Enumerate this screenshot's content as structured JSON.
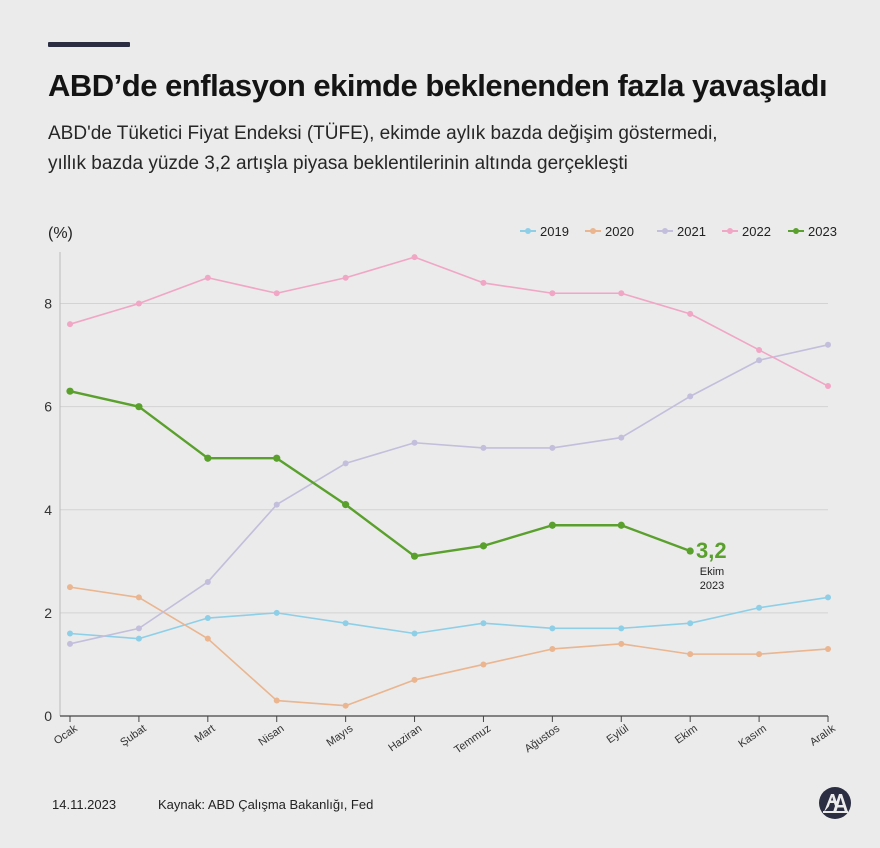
{
  "header": {
    "title": "ABD’de enflasyon ekimde beklenenden fazla yavaşladı",
    "subtitle_line1": "ABD'de Tüketici Fiyat Endeksi (TÜFE), ekimde aylık bazda değişim göstermedi,",
    "subtitle_line2": "yıllık bazda yüzde 3,2 artışla piyasa beklentilerinin altında gerçekleşti"
  },
  "chart_data": {
    "type": "line",
    "ylabel": "(%)",
    "ylim": [
      0,
      9
    ],
    "yticks": [
      0,
      2,
      4,
      6,
      8
    ],
    "grid": true,
    "legend_position": "top-right",
    "categories": [
      "Ocak",
      "Şubat",
      "Mart",
      "Nisan",
      "Mayıs",
      "Haziran",
      "Temmuz",
      "Ağustos",
      "Eylül",
      "Ekim",
      "Kasım",
      "Aralık"
    ],
    "series": [
      {
        "name": "2019",
        "color": "#8ecfe8",
        "values": [
          1.6,
          1.5,
          1.9,
          2.0,
          1.8,
          1.6,
          1.8,
          1.7,
          1.7,
          1.8,
          2.1,
          2.3
        ]
      },
      {
        "name": "2020",
        "color": "#eab58f",
        "values": [
          2.5,
          2.3,
          1.5,
          0.3,
          0.2,
          0.7,
          1.0,
          1.3,
          1.4,
          1.2,
          1.2,
          1.3
        ]
      },
      {
        "name": "2021",
        "color": "#c3bedb",
        "values": [
          1.4,
          1.7,
          2.6,
          4.1,
          4.9,
          5.3,
          5.2,
          5.2,
          5.4,
          6.2,
          6.9,
          7.2
        ]
      },
      {
        "name": "2022",
        "color": "#f0a6c4",
        "values": [
          7.6,
          8.0,
          8.5,
          8.2,
          8.5,
          8.9,
          8.4,
          8.2,
          8.2,
          7.8,
          7.1,
          6.4
        ]
      },
      {
        "name": "2023",
        "color": "#5aa02c",
        "values": [
          6.3,
          6.0,
          5.0,
          5.0,
          4.1,
          3.1,
          3.3,
          3.7,
          3.7,
          3.2,
          null,
          null
        ]
      }
    ],
    "annotation": {
      "value_label": "3,2",
      "line1": "Ekim",
      "line2": "2023",
      "color": "#5aa02c"
    }
  },
  "footer": {
    "date": "14.11.2023",
    "source": "Kaynak: ABD Çalışma Bakanlığı, Fed"
  },
  "logo": {
    "icon": "aa-logo-icon",
    "color": "#2b2d42"
  }
}
